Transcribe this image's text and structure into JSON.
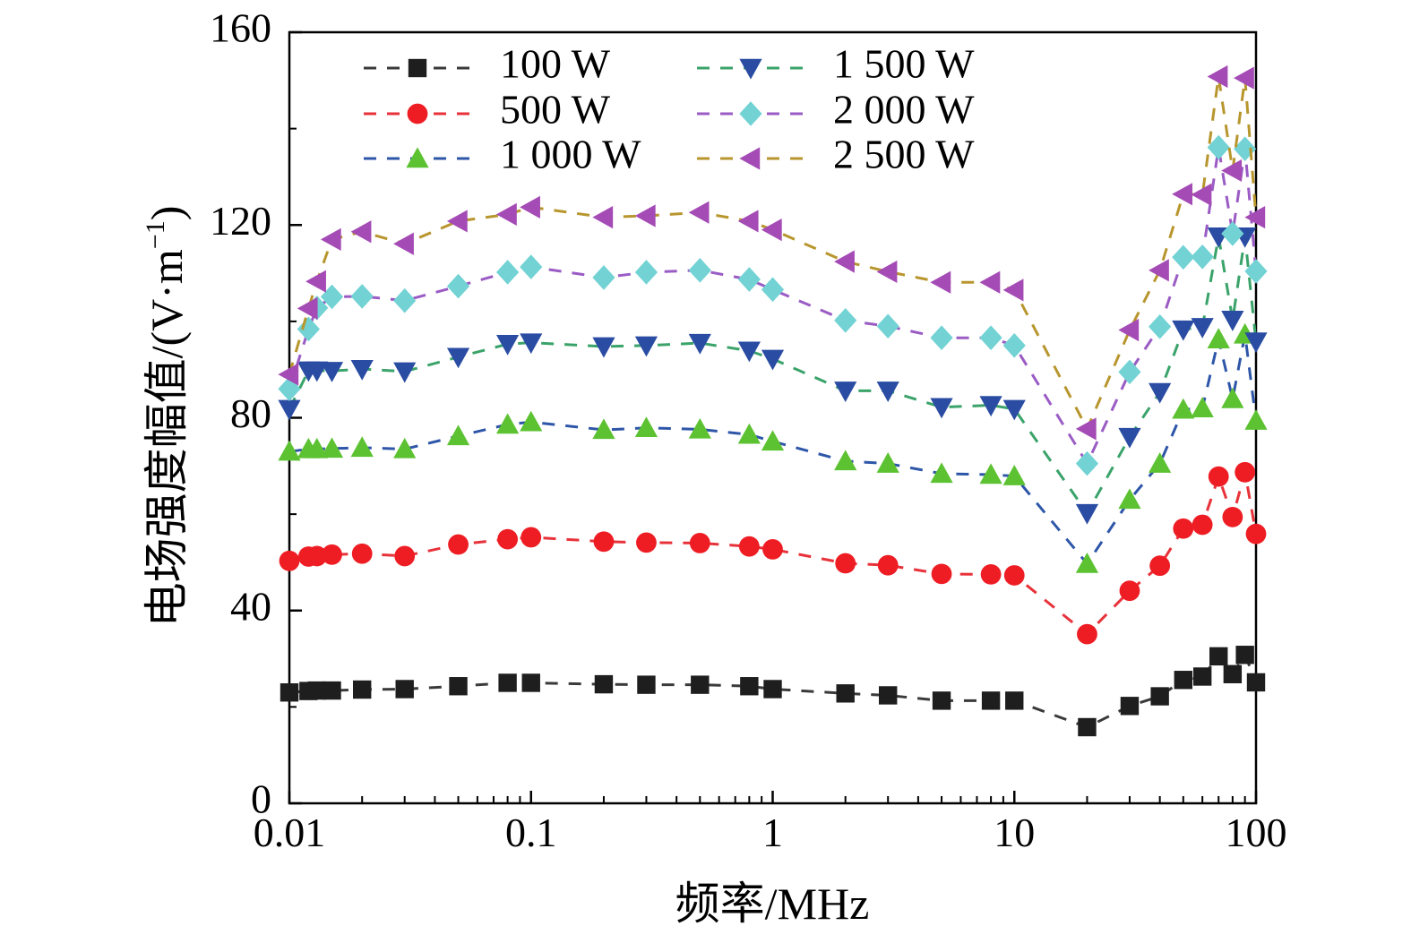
{
  "chart_data": {
    "type": "line",
    "title": "",
    "xlabel": "频率/MHz",
    "ylabel": "电场强度幅值/(V·m",
    "ylabel_sup": "−1",
    "ylabel_close": ")",
    "x_scale": "log",
    "xlim": [
      0.01,
      100
    ],
    "ylim": [
      0,
      160
    ],
    "x_ticks": [
      0.01,
      0.1,
      1,
      10,
      100
    ],
    "x_tick_labels": [
      "0.01",
      "0.1",
      "1",
      "10",
      "100"
    ],
    "y_ticks": [
      0,
      40,
      80,
      120,
      160
    ],
    "y_tick_labels": [
      "0",
      "40",
      "80",
      "120",
      "160"
    ],
    "grid": false,
    "legend_position": "top, two columns",
    "x": [
      0.01,
      0.012,
      0.013,
      0.015,
      0.02,
      0.03,
      0.05,
      0.08,
      0.1,
      0.2,
      0.3,
      0.5,
      0.8,
      1,
      2,
      3,
      5,
      8,
      10,
      20,
      30,
      40,
      50,
      60,
      70,
      80,
      90,
      100
    ],
    "series": [
      {
        "name": "100 W",
        "marker": "square",
        "marker_color": "#1e1e1e",
        "line_color": "#3a3a3a",
        "values": [
          23,
          23.3,
          23.4,
          23.4,
          23.6,
          23.7,
          24.3,
          25,
          25,
          24.7,
          24.6,
          24.6,
          24.3,
          23.7,
          22.8,
          22.4,
          21.3,
          21.3,
          21.3,
          15.8,
          20.2,
          22.2,
          25.6,
          26.3,
          30.5,
          26.8,
          30.8,
          25.1
        ]
      },
      {
        "name": "500 W",
        "marker": "circle",
        "marker_color": "#ee1d24",
        "line_color": "#e8323a",
        "values": [
          50.3,
          51.2,
          51.3,
          51.6,
          51.8,
          51.3,
          53.7,
          54.8,
          55.2,
          54.3,
          54.1,
          54,
          53.3,
          52.7,
          49.8,
          49.4,
          47.6,
          47.5,
          47.3,
          35.1,
          44.1,
          49.3,
          57,
          57.8,
          67.8,
          59.4,
          68.7,
          55.9
        ]
      },
      {
        "name": "1 000 W",
        "marker": "triangle-up",
        "marker_color": "#5cc232",
        "line_color": "#2e56a8",
        "values": [
          73,
          73.5,
          73.5,
          73.6,
          73.8,
          73.5,
          76.2,
          78.6,
          79.1,
          77.5,
          77.9,
          77.6,
          76.5,
          75.1,
          71,
          70.5,
          68.4,
          68.2,
          67.9,
          49.7,
          63,
          70.5,
          81.7,
          82,
          96.3,
          83.9,
          97.3,
          79.4
        ]
      },
      {
        "name": "1 500 W",
        "marker": "triangle-down",
        "marker_color": "#2a4da3",
        "line_color": "#3aa36a",
        "values": [
          81.8,
          89.8,
          89.8,
          89.7,
          90.1,
          89.6,
          92.6,
          95.3,
          95.6,
          94.8,
          95,
          95.5,
          93.9,
          92.2,
          85.6,
          85.6,
          82.2,
          82.6,
          81.8,
          60.2,
          76,
          85.3,
          98.3,
          98.8,
          117.6,
          100.3,
          117.6,
          95.8
        ]
      },
      {
        "name": "2 000 W",
        "marker": "diamond",
        "marker_color": "#72d2d4",
        "line_color": "#9a5cc4",
        "values": [
          86,
          98.4,
          102.8,
          105.1,
          105.2,
          104.3,
          107.3,
          110.2,
          111.3,
          109.1,
          110.2,
          110.6,
          108.7,
          106.6,
          100.2,
          99,
          96.6,
          96.6,
          95,
          70.5,
          89.5,
          98.9,
          113.3,
          113.4,
          136.1,
          118.2,
          135.8,
          110.4
        ]
      },
      {
        "name": "2 500 W",
        "marker": "triangle-left",
        "marker_color": "#a44bb5",
        "line_color": "#b8962e",
        "values": [
          89,
          102.7,
          108.3,
          117,
          118.6,
          116.1,
          120.8,
          122.2,
          123.7,
          121.6,
          121.9,
          122.6,
          120.8,
          119,
          112.4,
          110.3,
          108.1,
          108.1,
          106.5,
          77.7,
          98.2,
          110.6,
          126.4,
          126.3,
          150.8,
          131.3,
          150.5,
          121.6
        ]
      }
    ]
  }
}
